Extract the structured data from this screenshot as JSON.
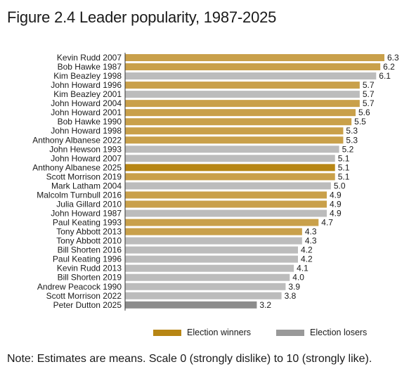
{
  "title": "Figure 2.4 Leader popularity, 1987-2025",
  "note": "Note: Estimates are means. Scale 0 (strongly dislike) to 10 (strongly like).",
  "colors": {
    "winner": "#c9a04a",
    "winner_highlight": "#b78614",
    "loser": "#bcbcbc",
    "loser_highlight": "#8c8c8c"
  },
  "chart_data": {
    "type": "bar",
    "orientation": "horizontal",
    "title": "Figure 2.4 Leader popularity, 1987-2025",
    "xlim": [
      0,
      6.3
    ],
    "legend": [
      {
        "name": "Election winners",
        "color": "#b78614"
      },
      {
        "name": "Election losers",
        "color": "#999999"
      }
    ],
    "legend_placement": "bottom-right",
    "grid": false,
    "bars": [
      {
        "label": "Kevin Rudd 2007",
        "value": 6.3,
        "display": "6.3",
        "group": "winner"
      },
      {
        "label": "Bob Hawke 1987",
        "value": 6.2,
        "display": "6.2",
        "group": "winner"
      },
      {
        "label": "Kim Beazley 1998",
        "value": 6.1,
        "display": "6.1",
        "group": "loser"
      },
      {
        "label": "John Howard 1996",
        "value": 5.7,
        "display": "5.7",
        "group": "winner"
      },
      {
        "label": "Kim Beazley 2001",
        "value": 5.7,
        "display": "5.7",
        "group": "loser"
      },
      {
        "label": "John Howard 2004",
        "value": 5.7,
        "display": "5.7",
        "group": "winner"
      },
      {
        "label": "John Howard 2001",
        "value": 5.6,
        "display": "5.6",
        "group": "winner"
      },
      {
        "label": "Bob Hawke 1990",
        "value": 5.5,
        "display": "5.5",
        "group": "winner"
      },
      {
        "label": "John Howard 1998",
        "value": 5.3,
        "display": "5.3",
        "group": "winner"
      },
      {
        "label": "Anthony Albanese 2022",
        "value": 5.3,
        "display": "5.3",
        "group": "winner"
      },
      {
        "label": "John Hewson 1993",
        "value": 5.2,
        "display": "5.2",
        "group": "loser"
      },
      {
        "label": "John Howard 2007",
        "value": 5.1,
        "display": "5.1",
        "group": "loser"
      },
      {
        "label": "Anthony Albanese 2025",
        "value": 5.1,
        "display": "5.1",
        "group": "winner",
        "highlight": true
      },
      {
        "label": "Scott Morrison 2019",
        "value": 5.1,
        "display": "5.1",
        "group": "winner"
      },
      {
        "label": "Mark Latham 2004",
        "value": 5.0,
        "display": "5.0",
        "group": "loser"
      },
      {
        "label": "Malcolm Turnbull 2016",
        "value": 4.9,
        "display": "4.9",
        "group": "winner"
      },
      {
        "label": "Julia Gillard 2010",
        "value": 4.9,
        "display": "4.9",
        "group": "winner"
      },
      {
        "label": "John Howard 1987",
        "value": 4.9,
        "display": "4.9",
        "group": "loser"
      },
      {
        "label": "Paul Keating 1993",
        "value": 4.7,
        "display": "4.7",
        "group": "winner"
      },
      {
        "label": "Tony Abbott 2013",
        "value": 4.3,
        "display": "4.3",
        "group": "winner"
      },
      {
        "label": "Tony Abbott 2010",
        "value": 4.3,
        "display": "4.3",
        "group": "loser"
      },
      {
        "label": "Bill Shorten 2016",
        "value": 4.2,
        "display": "4.2",
        "group": "loser"
      },
      {
        "label": "Paul Keating 1996",
        "value": 4.2,
        "display": "4.2",
        "group": "loser"
      },
      {
        "label": "Kevin Rudd 2013",
        "value": 4.1,
        "display": "4.1",
        "group": "loser"
      },
      {
        "label": "Bill Shorten 2019",
        "value": 4.0,
        "display": "4.0",
        "group": "loser"
      },
      {
        "label": "Andrew Peacock 1990",
        "value": 3.9,
        "display": "3.9",
        "group": "loser"
      },
      {
        "label": "Scott Morrison 2022",
        "value": 3.8,
        "display": "3.8",
        "group": "loser"
      },
      {
        "label": "Peter Dutton 2025",
        "value": 3.2,
        "display": "3.2",
        "group": "loser",
        "highlight": true
      }
    ]
  }
}
